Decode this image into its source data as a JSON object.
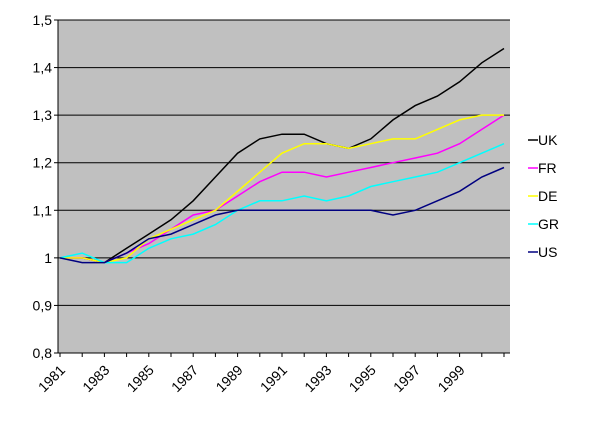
{
  "chart_data": {
    "type": "line",
    "categories": [
      "1981",
      null,
      "1983",
      null,
      "1985",
      null,
      "1987",
      null,
      "1989",
      null,
      "1991",
      null,
      "1993",
      null,
      "1995",
      null,
      "1997",
      null,
      "1999",
      null,
      null
    ],
    "series": [
      {
        "name": "UK",
        "color": "#000000",
        "values": [
          1.0,
          1.0,
          0.99,
          1.02,
          1.05,
          1.08,
          1.12,
          1.17,
          1.22,
          1.25,
          1.26,
          1.26,
          1.24,
          1.23,
          1.25,
          1.29,
          1.32,
          1.34,
          1.37,
          1.41,
          1.44
        ]
      },
      {
        "name": "FR",
        "color": "#ff00ff",
        "values": [
          1.0,
          1.0,
          0.99,
          1.01,
          1.03,
          1.06,
          1.09,
          1.1,
          1.13,
          1.16,
          1.18,
          1.18,
          1.17,
          1.18,
          1.19,
          1.2,
          1.21,
          1.22,
          1.24,
          1.27,
          1.3
        ]
      },
      {
        "name": "DE",
        "color": "#ffff00",
        "values": [
          1.0,
          1.0,
          0.99,
          1.0,
          1.04,
          1.06,
          1.08,
          1.1,
          1.14,
          1.18,
          1.22,
          1.24,
          1.24,
          1.23,
          1.24,
          1.25,
          1.25,
          1.27,
          1.29,
          1.3,
          1.3
        ]
      },
      {
        "name": "GR",
        "color": "#00ffff",
        "values": [
          1.0,
          1.01,
          0.99,
          0.99,
          1.02,
          1.04,
          1.05,
          1.07,
          1.1,
          1.12,
          1.12,
          1.13,
          1.12,
          1.13,
          1.15,
          1.16,
          1.17,
          1.18,
          1.2,
          1.22,
          1.24
        ]
      },
      {
        "name": "US",
        "color": "#000080",
        "values": [
          1.0,
          0.99,
          0.99,
          1.01,
          1.04,
          1.05,
          1.07,
          1.09,
          1.1,
          1.1,
          1.1,
          1.1,
          1.1,
          1.1,
          1.1,
          1.09,
          1.1,
          1.12,
          1.14,
          1.17,
          1.19
        ]
      }
    ],
    "ylim": [
      0.8,
      1.5
    ],
    "yticks": [
      {
        "value": 0.8,
        "label": "0,8"
      },
      {
        "value": 0.9,
        "label": "0,9"
      },
      1,
      {
        "value": 1.1,
        "label": "1,1"
      },
      {
        "value": 1.2,
        "label": "1,2"
      },
      {
        "value": 1.3,
        "label": "1,3"
      },
      {
        "value": 1.4,
        "label": "1,4"
      },
      {
        "value": 1.5,
        "label": "1,5"
      }
    ],
    "grid": true,
    "legend": "right"
  }
}
